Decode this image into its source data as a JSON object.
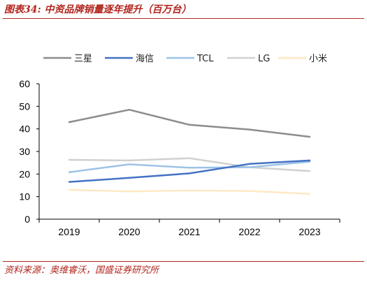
{
  "figure": {
    "title": "图表34:  中资品牌销量逐年提升（百万台）",
    "source": "资料来源：奥维睿沃，国盛证券研究所"
  },
  "chart_data": {
    "type": "line",
    "x": [
      "2019",
      "2020",
      "2021",
      "2022",
      "2023"
    ],
    "ylim": [
      0,
      60
    ],
    "yticks": [
      "0",
      "10",
      "20",
      "30",
      "40",
      "50",
      "60"
    ],
    "grid": false,
    "legend_position": "top",
    "series": [
      {
        "name": "三星",
        "color": "#8c8c8c",
        "values": [
          43.0,
          48.5,
          41.8,
          39.7,
          36.5
        ]
      },
      {
        "name": "海信",
        "color": "#4472c4",
        "values": [
          16.5,
          18.3,
          20.3,
          24.5,
          26.0
        ]
      },
      {
        "name": "TCL",
        "color": "#9dc3e6",
        "values": [
          20.8,
          24.3,
          22.8,
          23.0,
          25.5
        ]
      },
      {
        "name": "LG",
        "color": "#d0d0d0",
        "values": [
          26.3,
          26.0,
          27.0,
          23.0,
          21.3
        ]
      },
      {
        "name": "小米",
        "color": "#fde9c4",
        "values": [
          13.0,
          12.3,
          12.7,
          12.5,
          11.2
        ]
      }
    ]
  }
}
